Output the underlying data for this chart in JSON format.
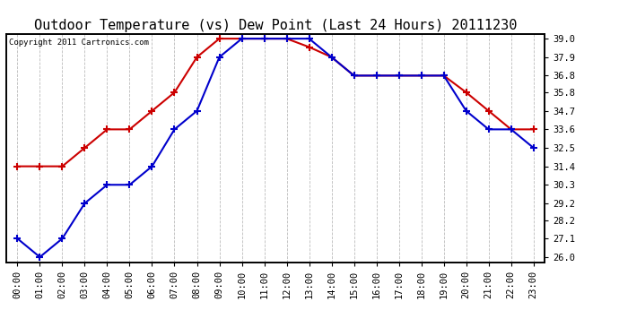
{
  "title": "Outdoor Temperature (vs) Dew Point (Last 24 Hours) 20111230",
  "copyright_text": "Copyright 2011 Cartronics.com",
  "x_labels": [
    "00:00",
    "01:00",
    "02:00",
    "03:00",
    "04:00",
    "05:00",
    "06:00",
    "07:00",
    "08:00",
    "09:00",
    "10:00",
    "11:00",
    "12:00",
    "13:00",
    "14:00",
    "15:00",
    "16:00",
    "17:00",
    "18:00",
    "19:00",
    "20:00",
    "21:00",
    "22:00",
    "23:00"
  ],
  "temp_red": [
    31.4,
    31.4,
    31.4,
    32.5,
    33.6,
    33.6,
    34.7,
    35.8,
    37.9,
    39.0,
    39.0,
    39.0,
    39.0,
    38.5,
    37.9,
    36.8,
    36.8,
    36.8,
    36.8,
    36.8,
    35.8,
    34.7,
    33.6,
    33.6
  ],
  "dew_blue": [
    27.1,
    26.0,
    27.1,
    29.2,
    30.3,
    30.3,
    31.4,
    33.6,
    34.7,
    37.9,
    39.0,
    39.0,
    39.0,
    39.0,
    37.9,
    36.8,
    36.8,
    36.8,
    36.8,
    36.8,
    34.7,
    33.6,
    33.6,
    32.5
  ],
  "ylim_min": 26.0,
  "ylim_max": 39.0,
  "y_ticks": [
    26.0,
    27.1,
    28.2,
    29.2,
    30.3,
    31.4,
    32.5,
    33.6,
    34.7,
    35.8,
    36.8,
    37.9,
    39.0
  ],
  "red_color": "#cc0000",
  "blue_color": "#0000cc",
  "bg_color": "#ffffff",
  "grid_color": "#bbbbbb",
  "title_fontsize": 11,
  "copyright_fontsize": 6.5,
  "tick_fontsize": 7.5
}
